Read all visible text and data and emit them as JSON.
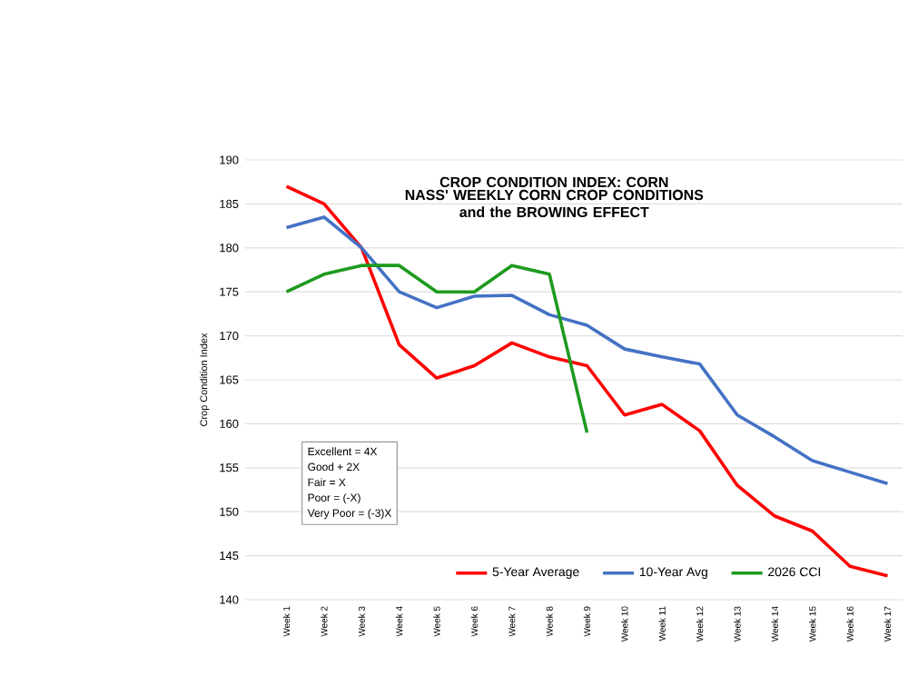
{
  "chart_data": {
    "type": "line",
    "title": "CROP CONDITION INDEX: CORN",
    "subtitle": "NASS' WEEKLY CORN CROP CONDITIONS\nand the BROWING EFFECT",
    "ylabel": "Crop Condition Index",
    "categories": [
      "Week 1",
      "Week 2",
      "Week 3",
      "Week 4",
      "Week 5",
      "Week 6",
      "Week 7",
      "Week 8",
      "Week 9",
      "Week 10",
      "Week 11",
      "Week 12",
      "Week 13",
      "Week 14",
      "Week 15",
      "Week 16",
      "Week 17"
    ],
    "series": [
      {
        "name": "5-Year Average",
        "color": "#ff0000",
        "values": [
          187,
          185,
          180,
          169,
          165.2,
          166.6,
          169.2,
          167.6,
          166.6,
          161,
          162.2,
          159.2,
          153,
          149.5,
          147.8,
          143.8,
          142.7
        ]
      },
      {
        "name": "10-Year Avg",
        "color": "#4472c4",
        "values": [
          182.3,
          183.5,
          180,
          175,
          173.2,
          174.5,
          174.6,
          172.4,
          171.2,
          168.5,
          167.6,
          166.8,
          161,
          158.5,
          155.8,
          154.5,
          153.2
        ]
      },
      {
        "name": "2026 CCI",
        "color": "#1e9a1e",
        "values": [
          175,
          177,
          178,
          178,
          175,
          175,
          178,
          177,
          159,
          null,
          null,
          null,
          null,
          null,
          null,
          null,
          null
        ]
      }
    ],
    "ylim": [
      140,
      190
    ],
    "yticks": [
      140,
      145,
      150,
      155,
      160,
      165,
      170,
      175,
      180,
      185,
      190
    ],
    "grid": "y",
    "legend": "bottom",
    "line_style": "solid",
    "annotations": [
      "Excellent = 4X",
      "Good + 2X",
      "Fair = X",
      "Poor = (-X)",
      "Very Poor = (-3)X"
    ]
  }
}
